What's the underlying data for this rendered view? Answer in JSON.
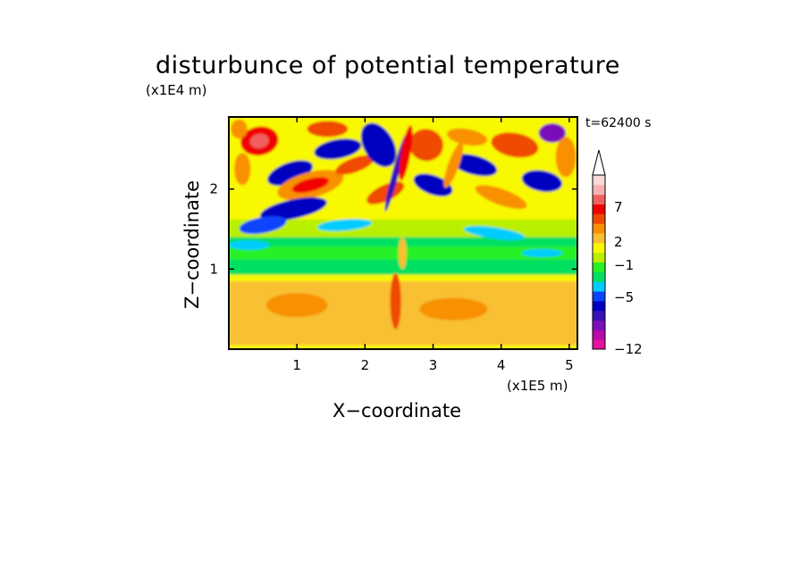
{
  "chart_data": {
    "type": "heatmap",
    "title": "disturbunce of potential temperature",
    "time_label": "t=62400 s",
    "xlabel": "X−coordinate",
    "ylabel": "Z−coordinate",
    "x_scale_label": "(x1E5 m)",
    "y_scale_label": "(x1E4 m)",
    "xlim": [
      0,
      5.12
    ],
    "ylim": [
      0,
      2.9
    ],
    "x_ticks": [
      "1",
      "2",
      "3",
      "4",
      "5"
    ],
    "y_ticks": [
      "1",
      "2"
    ],
    "colorbar": {
      "tick_labels": [
        "7",
        "2",
        "−1",
        "−5",
        "−12"
      ],
      "tick_values": [
        7,
        2,
        -1,
        -5,
        -12
      ],
      "colors": [
        "#e8109c",
        "#b80aa8",
        "#7a10b8",
        "#3a10b8",
        "#0000c0",
        "#0a44ff",
        "#00ccff",
        "#00e060",
        "#28f028",
        "#b8f000",
        "#f8f800",
        "#f8c030",
        "#f89000",
        "#f04800",
        "#f00000",
        "#f06060",
        "#f8b0b0",
        "#f8d8d8"
      ],
      "extend_top": true
    }
  }
}
